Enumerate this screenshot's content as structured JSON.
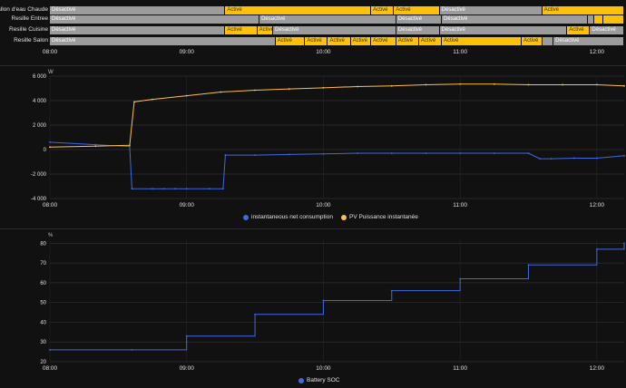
{
  "timeline": {
    "start": "08:00",
    "end": "12:12",
    "ticks": [
      "08:00",
      "09:00",
      "10:00",
      "11:00",
      "12:00"
    ],
    "colors": {
      "off": "#9c9c9c",
      "on": "#ffc107"
    },
    "rows": [
      {
        "label": "Ballon d'eau Chaude",
        "segments": [
          {
            "from": "08:00",
            "to": "09:17",
            "state": "off",
            "text": "Désactivé"
          },
          {
            "from": "09:17",
            "to": "10:21",
            "state": "on",
            "text": "Activé"
          },
          {
            "from": "10:21",
            "to": "10:31",
            "state": "on",
            "text": "Activé"
          },
          {
            "from": "10:31",
            "to": "10:51",
            "state": "on",
            "text": "Activé"
          },
          {
            "from": "10:51",
            "to": "11:36",
            "state": "off",
            "text": "Désactivé"
          },
          {
            "from": "11:36",
            "to": "12:12",
            "state": "on",
            "text": "Activé"
          }
        ]
      },
      {
        "label": "Resille Entree",
        "segments": [
          {
            "from": "08:00",
            "to": "09:32",
            "state": "off",
            "text": "Désactivé"
          },
          {
            "from": "09:32",
            "to": "10:32",
            "state": "off",
            "text": "Désactivé"
          },
          {
            "from": "10:32",
            "to": "10:52",
            "state": "off",
            "text": "Désactivé"
          },
          {
            "from": "10:52",
            "to": "11:56",
            "state": "off",
            "text": "Désactivé"
          },
          {
            "from": "11:56",
            "to": "11:59",
            "state": "off",
            "text": ""
          },
          {
            "from": "11:59",
            "to": "12:03",
            "state": "on",
            "text": ""
          },
          {
            "from": "12:03",
            "to": "12:12",
            "state": "on",
            "text": ""
          }
        ]
      },
      {
        "label": "Resille Cuisine",
        "segments": [
          {
            "from": "08:00",
            "to": "09:17",
            "state": "off",
            "text": "Désactivé"
          },
          {
            "from": "09:17",
            "to": "09:31",
            "state": "on",
            "text": "Activé"
          },
          {
            "from": "09:31",
            "to": "09:38",
            "state": "on",
            "text": "Activé"
          },
          {
            "from": "09:38",
            "to": "10:32",
            "state": "off",
            "text": "Désactivé"
          },
          {
            "from": "10:32",
            "to": "10:51",
            "state": "off",
            "text": "Désactivé"
          },
          {
            "from": "10:51",
            "to": "11:47",
            "state": "off",
            "text": "Désactivé"
          },
          {
            "from": "11:47",
            "to": "11:57",
            "state": "on",
            "text": "Activé"
          },
          {
            "from": "11:57",
            "to": "12:12",
            "state": "off",
            "text": "Désactivé"
          }
        ]
      },
      {
        "label": "Resille Salon",
        "segments": [
          {
            "from": "08:00",
            "to": "09:39",
            "state": "off",
            "text": "Désactivé"
          },
          {
            "from": "09:39",
            "to": "09:52",
            "state": "on",
            "text": "Activé"
          },
          {
            "from": "09:52",
            "to": "10:02",
            "state": "on",
            "text": "Activé"
          },
          {
            "from": "10:02",
            "to": "10:12",
            "state": "on",
            "text": "Activé"
          },
          {
            "from": "10:12",
            "to": "10:21",
            "state": "on",
            "text": "Activé"
          },
          {
            "from": "10:21",
            "to": "10:32",
            "state": "on",
            "text": "Activé"
          },
          {
            "from": "10:32",
            "to": "10:42",
            "state": "on",
            "text": "Activé"
          },
          {
            "from": "10:42",
            "to": "10:52",
            "state": "on",
            "text": "Activé"
          },
          {
            "from": "10:52",
            "to": "11:27",
            "state": "on",
            "text": "Activé"
          },
          {
            "from": "11:27",
            "to": "11:36",
            "state": "on",
            "text": "Activé"
          },
          {
            "from": "11:36",
            "to": "11:41",
            "state": "off",
            "text": ""
          },
          {
            "from": "11:41",
            "to": "12:12",
            "state": "off",
            "text": "Désactivé"
          }
        ]
      }
    ]
  },
  "power_chart": {
    "unit": "W",
    "yticks": [
      "6 000",
      "4 000",
      "2 000",
      "0",
      "-2 000",
      "-4 000"
    ],
    "legend": [
      {
        "name": "instantaneous net consumption",
        "color": "#4169e1"
      },
      {
        "name": "PV Puissance instantanée",
        "color": "#ffc048"
      }
    ]
  },
  "soc_chart": {
    "unit": "%",
    "yticks": [
      "80",
      "70",
      "60",
      "50",
      "40",
      "30",
      "20"
    ],
    "legend": [
      {
        "name": "Battery SOC",
        "color": "#4169e1"
      }
    ]
  },
  "chart_data": [
    {
      "type": "line",
      "title": "",
      "xlabel": "",
      "ylabel": "W",
      "x_ticks": [
        "08:00",
        "09:00",
        "10:00",
        "11:00",
        "12:00"
      ],
      "ylim": [
        -4000,
        6000
      ],
      "grid": true,
      "legend_position": "bottom",
      "series": [
        {
          "name": "instantaneous net consumption",
          "color": "#4169e1",
          "x": [
            "08:00",
            "08:20",
            "08:35",
            "08:36",
            "08:45",
            "08:50",
            "08:55",
            "09:00",
            "09:10",
            "09:16",
            "09:17",
            "09:30",
            "09:45",
            "10:00",
            "10:15",
            "10:30",
            "10:45",
            "11:00",
            "11:15",
            "11:30",
            "11:35",
            "11:40",
            "11:50",
            "12:00",
            "12:12"
          ],
          "y": [
            600,
            400,
            250,
            -3200,
            -3200,
            -3200,
            -3200,
            -3200,
            -3200,
            -3200,
            -450,
            -450,
            -400,
            -350,
            -300,
            -300,
            -300,
            -300,
            -300,
            -300,
            -750,
            -750,
            -700,
            -700,
            -500
          ]
        },
        {
          "name": "PV Puissance instantanée",
          "color": "#ffc048",
          "x": [
            "08:00",
            "08:20",
            "08:35",
            "08:37",
            "08:45",
            "09:00",
            "09:15",
            "09:30",
            "09:45",
            "10:00",
            "10:15",
            "10:30",
            "10:45",
            "11:00",
            "11:15",
            "11:30",
            "11:45",
            "12:00",
            "12:12"
          ],
          "y": [
            200,
            280,
            350,
            3900,
            4100,
            4400,
            4700,
            4850,
            4950,
            5050,
            5150,
            5200,
            5300,
            5350,
            5350,
            5300,
            5300,
            5300,
            5200
          ]
        }
      ]
    },
    {
      "type": "line",
      "title": "",
      "xlabel": "",
      "ylabel": "%",
      "x_ticks": [
        "08:00",
        "09:00",
        "10:00",
        "11:00",
        "12:00"
      ],
      "ylim": [
        20,
        82
      ],
      "grid": true,
      "legend_position": "bottom",
      "series": [
        {
          "name": "Battery SOC",
          "color": "#4169e1",
          "x": [
            "08:00",
            "08:36",
            "09:00",
            "09:30",
            "10:00",
            "10:30",
            "11:00",
            "11:30",
            "12:00",
            "12:12"
          ],
          "y": [
            26,
            26,
            33,
            44,
            51,
            56,
            62,
            69,
            77,
            80
          ]
        }
      ]
    }
  ]
}
